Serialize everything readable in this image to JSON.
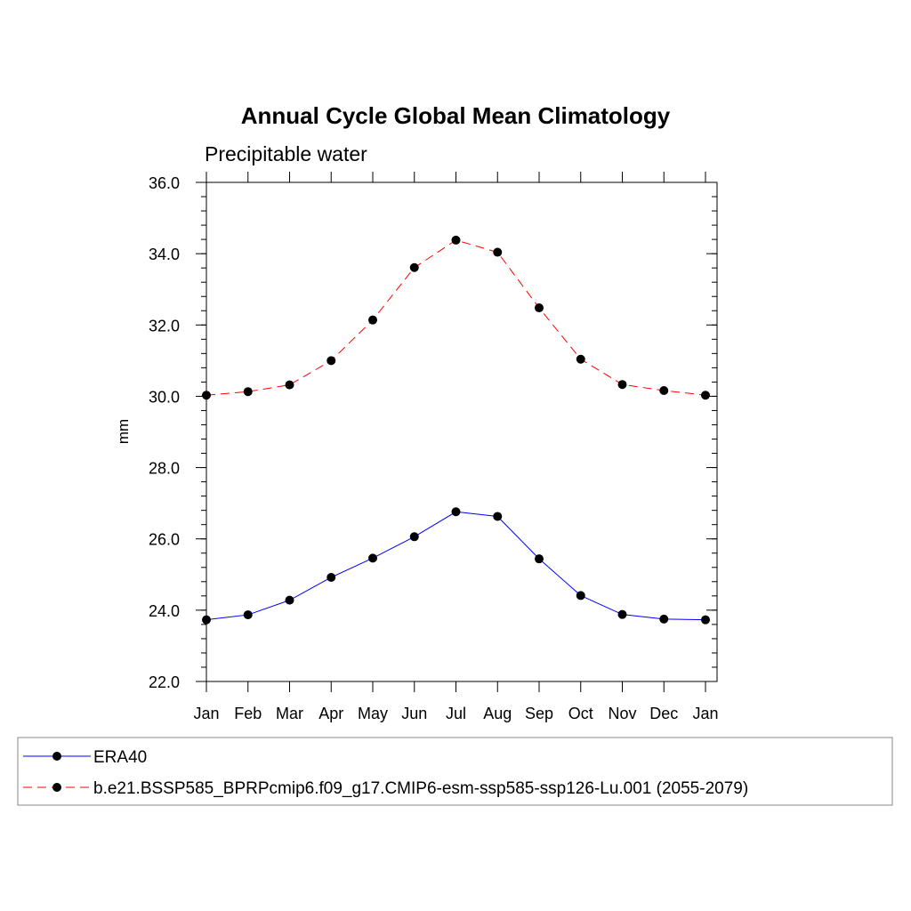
{
  "chart_data": {
    "type": "line",
    "title": "Annual Cycle Global Mean Climatology",
    "subtitle": "Precipitable water",
    "xlabel": "",
    "ylabel": "mm",
    "categories": [
      "Jan",
      "Feb",
      "Mar",
      "Apr",
      "May",
      "Jun",
      "Jul",
      "Aug",
      "Sep",
      "Oct",
      "Nov",
      "Dec",
      "Jan"
    ],
    "ylim": [
      22.0,
      36.0
    ],
    "yticks": [
      "22.0",
      "24.0",
      "26.0",
      "28.0",
      "30.0",
      "32.0",
      "34.0",
      "36.0"
    ],
    "grid": false,
    "legend_position": "bottom",
    "series": [
      {
        "name": "ERA40",
        "color": "#0000ff",
        "dash": "solid",
        "values": [
          23.73,
          23.87,
          24.28,
          24.92,
          25.46,
          26.06,
          26.76,
          26.63,
          25.44,
          24.41,
          23.88,
          23.75,
          23.73
        ]
      },
      {
        "name": "b.e21.BSSP585_BPRPcmip6.f09_g17.CMIP6-esm-ssp585-ssp126-Lu.001 (2055-2079)",
        "color": "#ff0000",
        "dash": "dashed",
        "values": [
          30.03,
          30.13,
          30.32,
          31.0,
          32.14,
          33.61,
          34.38,
          34.04,
          32.48,
          31.04,
          30.33,
          30.16,
          30.03
        ]
      }
    ]
  }
}
